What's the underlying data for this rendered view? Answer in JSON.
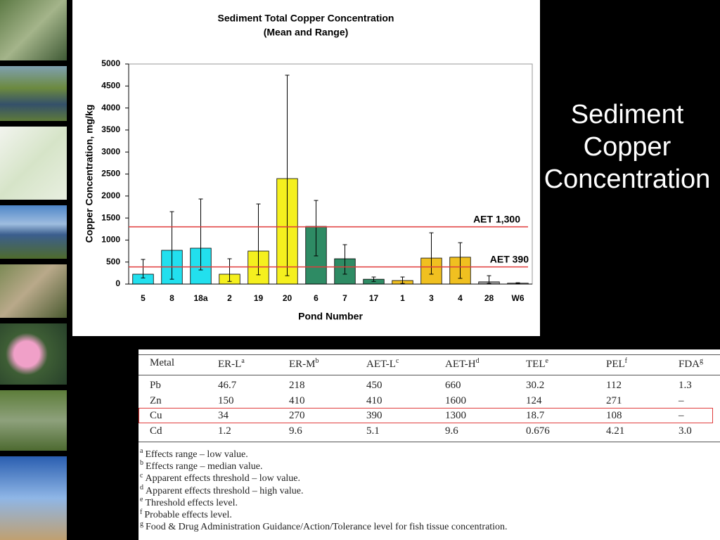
{
  "slide_title": "Sediment Copper Concentration",
  "chart_data": {
    "type": "bar",
    "title": "Sediment Total Copper Concentration",
    "subtitle": "(Mean and Range)",
    "x_label": "Pond Number",
    "y_label": "Copper Concentration, mg/kg",
    "categories": [
      "5",
      "8",
      "18a",
      "2",
      "19",
      "20",
      "6",
      "7",
      "17",
      "1",
      "3",
      "4",
      "28",
      "W6"
    ],
    "values": [
      224,
      767,
      815,
      224,
      750,
      2396,
      1310,
      575,
      110,
      80,
      590,
      610,
      50,
      20
    ],
    "range_low": [
      140,
      110,
      320,
      60,
      210,
      190,
      640,
      225,
      60,
      15,
      225,
      130,
      15,
      10
    ],
    "range_high": [
      560,
      1645,
      1933,
      575,
      1820,
      4745,
      1900,
      895,
      160,
      160,
      1165,
      940,
      190,
      30
    ],
    "colors": [
      "#22e0ee",
      "#22e0ee",
      "#22e0ee",
      "#f5f01e",
      "#f5f01e",
      "#f5f01e",
      "#2e8b64",
      "#2e8b64",
      "#2e8b64",
      "#f0c020",
      "#f0c020",
      "#f0c020",
      "#a0a0a0",
      "#a0a0a0"
    ],
    "ylim": [
      0,
      5000
    ],
    "yticks": [
      0,
      500,
      1000,
      1500,
      2000,
      2500,
      3000,
      3500,
      4000,
      4500,
      5000
    ],
    "grid": false,
    "reference_lines": [
      {
        "value": 1300,
        "label": "AET 1,300",
        "color": "#e03c3c"
      },
      {
        "value": 390,
        "label": "AET 390",
        "color": "#e03c3c"
      }
    ]
  },
  "table": {
    "header": [
      {
        "text": "Metal",
        "sup": ""
      },
      {
        "text": "ER-L",
        "sup": "a"
      },
      {
        "text": "ER-M",
        "sup": "b"
      },
      {
        "text": "AET-L",
        "sup": "c"
      },
      {
        "text": "AET-H",
        "sup": "d"
      },
      {
        "text": "TEL",
        "sup": "e"
      },
      {
        "text": "PEL",
        "sup": "f"
      },
      {
        "text": "FDA",
        "sup": "g"
      }
    ],
    "rows": [
      [
        "Pb",
        "46.7",
        "218",
        "450",
        "660",
        "30.2",
        "112",
        "1.3"
      ],
      [
        "Zn",
        "150",
        "410",
        "410",
        "1600",
        "124",
        "271",
        "–"
      ],
      [
        "Cu",
        "34",
        "270",
        "390",
        "1300",
        "18.7",
        "108",
        "–"
      ],
      [
        "Cd",
        "1.2",
        "9.6",
        "5.1",
        "9.6",
        "0.676",
        "4.21",
        "3.0"
      ]
    ],
    "highlight_row": 2
  },
  "footnotes": [
    {
      "mark": "a",
      "text": "Effects range – low value."
    },
    {
      "mark": "b",
      "text": "Effects range – median value."
    },
    {
      "mark": "c",
      "text": "Apparent effects threshold – low value."
    },
    {
      "mark": "d",
      "text": "Apparent effects threshold – high value."
    },
    {
      "mark": "e",
      "text": "Threshold effects level."
    },
    {
      "mark": "f",
      "text": "Probable effects level."
    },
    {
      "mark": "g",
      "text": "Food & Drug Administration Guidance/Action/Tolerance level for fish tissue concentration."
    }
  ]
}
